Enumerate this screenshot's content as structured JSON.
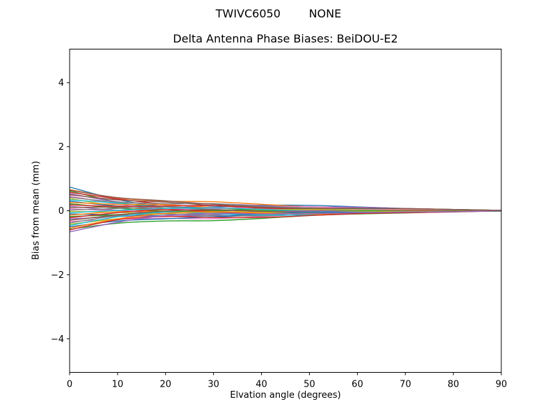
{
  "figure": {
    "background": "#ffffff",
    "spine_color": "#000000",
    "text_color": "#000000"
  },
  "chart_data": {
    "type": "line",
    "suptitle": "TWIVC6050        NONE",
    "title": "Delta Antenna Phase Biases: BeiDOU-E2",
    "xlabel": "Elvation angle (degrees)",
    "ylabel": "Bias from mean (mm)",
    "xlim": [
      0,
      90
    ],
    "ylim": [
      -5.05,
      5.05
    ],
    "xticks": [
      0,
      10,
      20,
      30,
      40,
      50,
      60,
      70,
      80,
      90
    ],
    "yticks": [
      -4,
      -2,
      0,
      2,
      4
    ],
    "grid": false,
    "legend": "none",
    "line_width": 1.4,
    "x": [
      0,
      10,
      20,
      30,
      40,
      50,
      60,
      70,
      80,
      90
    ],
    "series": [
      {
        "name": "line-01",
        "color": "#1f77b4",
        "values": [
          0.74,
          0.35,
          0.13,
          0.12,
          0.17,
          0.17,
          0.12,
          0.07,
          0.04,
          0.01
        ]
      },
      {
        "name": "line-02",
        "color": "#ff7f0e",
        "values": [
          0.66,
          0.4,
          0.3,
          0.28,
          0.2,
          0.12,
          0.07,
          0.06,
          0.04,
          0.0
        ]
      },
      {
        "name": "line-03",
        "color": "#2ca02c",
        "values": [
          0.62,
          0.27,
          0.07,
          0.0,
          0.03,
          0.06,
          0.07,
          0.05,
          0.04,
          0.01
        ]
      },
      {
        "name": "line-04",
        "color": "#d62728",
        "values": [
          0.58,
          0.37,
          0.2,
          0.1,
          0.05,
          0.06,
          0.07,
          0.06,
          0.03,
          0.0
        ]
      },
      {
        "name": "line-05",
        "color": "#9467bd",
        "values": [
          0.54,
          0.28,
          0.22,
          0.22,
          0.16,
          0.12,
          0.11,
          0.07,
          0.04,
          0.01
        ]
      },
      {
        "name": "line-06",
        "color": "#8c564b",
        "values": [
          0.5,
          0.34,
          0.27,
          0.16,
          0.08,
          0.04,
          0.06,
          0.06,
          0.03,
          0.0
        ]
      },
      {
        "name": "line-07",
        "color": "#e377c2",
        "values": [
          0.46,
          0.21,
          0.06,
          0.06,
          0.12,
          0.12,
          0.08,
          0.05,
          0.03,
          0.0
        ]
      },
      {
        "name": "line-08",
        "color": "#7f7f7f",
        "values": [
          0.42,
          0.27,
          0.22,
          0.22,
          0.14,
          0.08,
          0.04,
          0.03,
          0.03,
          0.01
        ]
      },
      {
        "name": "line-09",
        "color": "#bcbd22",
        "values": [
          0.38,
          0.14,
          -0.01,
          -0.06,
          -0.03,
          0.02,
          0.03,
          0.03,
          0.02,
          0.0
        ]
      },
      {
        "name": "line-10",
        "color": "#17becf",
        "values": [
          0.34,
          0.24,
          0.12,
          0.04,
          -0.01,
          0.02,
          0.04,
          0.03,
          0.02,
          0.0
        ]
      },
      {
        "name": "line-11",
        "color": "#1f77b4",
        "values": [
          0.3,
          0.15,
          0.15,
          0.16,
          0.11,
          0.07,
          0.07,
          0.05,
          0.03,
          0.01
        ]
      },
      {
        "name": "line-12",
        "color": "#ff7f0e",
        "values": [
          0.26,
          0.2,
          0.19,
          0.1,
          0.03,
          0.0,
          0.03,
          0.04,
          0.02,
          0.0
        ]
      },
      {
        "name": "line-13",
        "color": "#2ca02c",
        "values": [
          0.22,
          0.08,
          -0.02,
          0.0,
          0.07,
          0.08,
          0.05,
          0.02,
          0.01,
          0.0
        ]
      },
      {
        "name": "line-14",
        "color": "#d62728",
        "values": [
          0.18,
          0.14,
          0.15,
          0.16,
          0.09,
          0.03,
          0.01,
          0.01,
          0.01,
          0.0
        ]
      },
      {
        "name": "line-15",
        "color": "#9467bd",
        "values": [
          0.14,
          0.01,
          -0.09,
          -0.12,
          -0.08,
          -0.02,
          0.0,
          0.0,
          0.01,
          0.0
        ]
      },
      {
        "name": "line-16",
        "color": "#8c564b",
        "values": [
          0.1,
          0.11,
          0.04,
          -0.02,
          -0.06,
          -0.02,
          0.0,
          0.01,
          0.01,
          0.0
        ]
      },
      {
        "name": "line-17",
        "color": "#e377c2",
        "values": [
          0.06,
          0.01,
          0.07,
          0.1,
          0.05,
          0.03,
          0.04,
          0.03,
          0.01,
          0.0
        ]
      },
      {
        "name": "line-18",
        "color": "#7f7f7f",
        "values": [
          0.02,
          0.07,
          0.12,
          0.04,
          -0.03,
          -0.05,
          -0.01,
          0.01,
          0.0,
          0.0
        ]
      },
      {
        "name": "line-19",
        "color": "#bcbd22",
        "values": [
          -0.02,
          -0.05,
          -0.1,
          -0.07,
          0.02,
          0.04,
          0.02,
          0.0,
          0.0,
          0.0
        ]
      },
      {
        "name": "line-20",
        "color": "#17becf",
        "values": [
          -0.06,
          0.01,
          0.07,
          0.09,
          0.04,
          -0.01,
          -0.03,
          -0.02,
          0.0,
          0.0
        ]
      },
      {
        "name": "line-21",
        "color": "#1f77b4",
        "values": [
          -0.1,
          -0.13,
          -0.16,
          -0.19,
          -0.13,
          -0.07,
          -0.03,
          -0.02,
          -0.01,
          0.0
        ]
      },
      {
        "name": "line-22",
        "color": "#ff7f0e",
        "values": [
          -0.14,
          -0.03,
          -0.03,
          -0.09,
          -0.11,
          -0.07,
          -0.03,
          -0.01,
          -0.01,
          0.0
        ]
      },
      {
        "name": "line-23",
        "color": "#2ca02c",
        "values": [
          -0.18,
          -0.12,
          -0.01,
          0.03,
          0.0,
          -0.01,
          0.0,
          0.0,
          0.0,
          0.0
        ]
      },
      {
        "name": "line-24",
        "color": "#d62728",
        "values": [
          -0.22,
          -0.06,
          0.04,
          -0.03,
          -0.08,
          -0.09,
          -0.04,
          -0.01,
          -0.01,
          0.0
        ]
      },
      {
        "name": "line-25",
        "color": "#9467bd",
        "values": [
          -0.26,
          -0.18,
          -0.17,
          -0.13,
          -0.04,
          -0.01,
          -0.02,
          -0.03,
          -0.02,
          0.0
        ]
      },
      {
        "name": "line-26",
        "color": "#8c564b",
        "values": [
          -0.3,
          -0.13,
          -0.01,
          0.03,
          -0.02,
          -0.05,
          -0.06,
          -0.04,
          -0.02,
          0.0
        ]
      },
      {
        "name": "line-27",
        "color": "#e377c2",
        "values": [
          -0.34,
          -0.26,
          -0.24,
          -0.25,
          -0.18,
          -0.11,
          -0.07,
          -0.04,
          -0.02,
          -0.01
        ]
      },
      {
        "name": "line-28",
        "color": "#7f7f7f",
        "values": [
          -0.38,
          -0.16,
          -0.11,
          -0.15,
          -0.16,
          -0.11,
          -0.06,
          -0.04,
          -0.02,
          0.0
        ]
      },
      {
        "name": "line-29",
        "color": "#bcbd22",
        "values": [
          -0.42,
          -0.25,
          -0.08,
          -0.03,
          -0.05,
          -0.06,
          -0.03,
          -0.02,
          -0.02,
          0.0
        ]
      },
      {
        "name": "line-30",
        "color": "#17becf",
        "values": [
          -0.46,
          -0.19,
          -0.04,
          -0.09,
          -0.13,
          -0.13,
          -0.07,
          -0.04,
          -0.03,
          -0.01
        ]
      },
      {
        "name": "line-31",
        "color": "#1f77b4",
        "values": [
          -0.5,
          -0.32,
          -0.25,
          -0.19,
          -0.09,
          -0.05,
          -0.05,
          -0.05,
          -0.03,
          0.0
        ]
      },
      {
        "name": "line-32",
        "color": "#ff7f0e",
        "values": [
          -0.54,
          -0.26,
          -0.08,
          -0.03,
          -0.07,
          -0.1,
          -0.1,
          -0.06,
          -0.03,
          0.0
        ]
      },
      {
        "name": "line-33",
        "color": "#2ca02c",
        "values": [
          -0.58,
          -0.39,
          -0.32,
          -0.31,
          -0.24,
          -0.15,
          -0.1,
          -0.07,
          -0.03,
          -0.01
        ]
      },
      {
        "name": "line-34",
        "color": "#d62728",
        "values": [
          -0.6,
          -0.28,
          -0.18,
          -0.21,
          -0.21,
          -0.15,
          -0.09,
          -0.06,
          -0.04,
          0.0
        ]
      },
      {
        "name": "line-35",
        "color": "#9467bd",
        "values": [
          -0.66,
          -0.36,
          -0.15,
          -0.08,
          -0.1,
          -0.09,
          -0.06,
          -0.04,
          -0.03,
          0.0
        ]
      },
      {
        "name": "line-36",
        "color": "#8c564b",
        "values": [
          0.64,
          0.41,
          0.31,
          0.2,
          0.11,
          0.07,
          0.08,
          0.07,
          0.04,
          0.01
        ]
      }
    ]
  }
}
